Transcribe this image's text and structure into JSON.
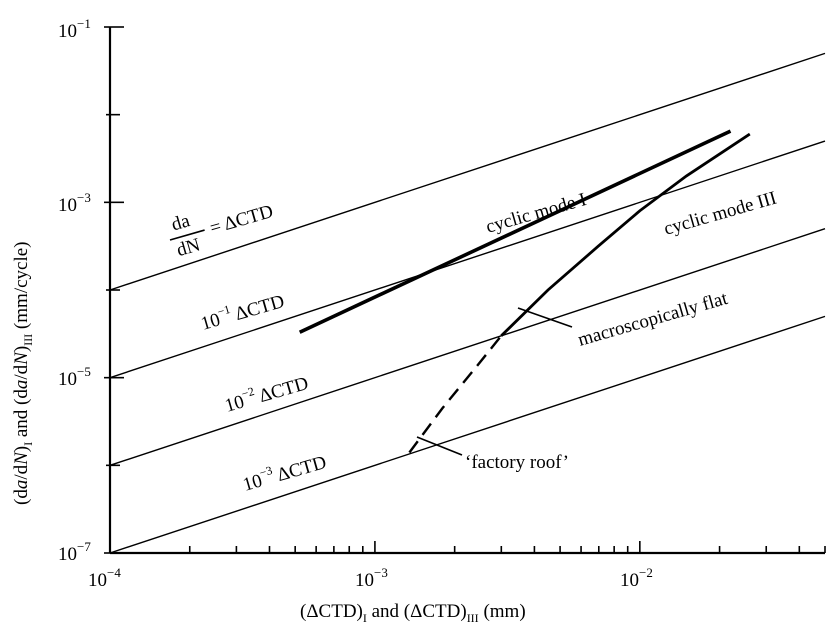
{
  "chart_data": {
    "type": "line",
    "x_scale": "log",
    "y_scale": "log",
    "xlim": [
      0.0001,
      0.05
    ],
    "ylim": [
      1e-07,
      0.1
    ],
    "xlabel": "(ΔCTD)I and (ΔCTD)III (mm)",
    "ylabel": "(da/dN)I and (da/dN)III (mm/cycle)",
    "x_tick_labels": [
      {
        "value": 0.0001,
        "base": "10",
        "exp": "−4"
      },
      {
        "value": 0.001,
        "base": "10",
        "exp": "−3"
      },
      {
        "value": 0.01,
        "base": "10",
        "exp": "−2"
      }
    ],
    "y_tick_labels": [
      {
        "value": 1e-07,
        "base": "10",
        "exp": "−7"
      },
      {
        "value": 1e-05,
        "base": "10",
        "exp": "−5"
      },
      {
        "value": 0.001,
        "base": "10",
        "exp": "−3"
      },
      {
        "value": 0.1,
        "base": "10",
        "exp": "−1"
      }
    ],
    "reference_lines": [
      {
        "factor": 1,
        "x": [
          0.0001,
          0.05
        ],
        "y": [
          0.0001,
          0.05
        ]
      },
      {
        "factor": 0.1,
        "x": [
          0.0001,
          0.05
        ],
        "y": [
          1e-05,
          0.005
        ]
      },
      {
        "factor": 0.01,
        "x": [
          0.0001,
          0.05
        ],
        "y": [
          1e-06,
          0.0005
        ]
      },
      {
        "factor": 0.001,
        "x": [
          0.0001,
          0.05
        ],
        "y": [
          1e-07,
          5e-05
        ]
      }
    ],
    "series": [
      {
        "name": "cyclic mode I",
        "style": "thick",
        "x": [
          0.00052,
          0.022
        ],
        "y": [
          3.3e-05,
          0.0065
        ]
      },
      {
        "name": "cyclic mode III",
        "style": "thick",
        "x": [
          0.003,
          0.0045,
          0.007,
          0.01,
          0.015,
          0.026
        ],
        "y": [
          3e-05,
          0.0001,
          0.00032,
          0.0008,
          0.002,
          0.006
        ]
      },
      {
        "name": "cyclic mode III (dashed)",
        "style": "dashed",
        "x": [
          0.00135,
          0.0018,
          0.0024,
          0.003
        ],
        "y": [
          1.4e-06,
          4.5e-06,
          1.3e-05,
          3e-05
        ]
      }
    ],
    "annotations": {
      "eq_da": "da",
      "eq_dN": "dN",
      "eq_rhs": "= ΔCTD",
      "ref_0_1": {
        "base": "10",
        "exp": "−1",
        "text": " ΔCTD"
      },
      "ref_0_01": {
        "base": "10",
        "exp": "−2",
        "text": " ΔCTD"
      },
      "ref_0_001": {
        "base": "10",
        "exp": "−3",
        "text": " ΔCTD"
      },
      "mode1": "cyclic mode I",
      "mode3": "cyclic mode III",
      "flat": "macroscopically flat",
      "roof": "‘factory roof’"
    },
    "grid": false
  }
}
